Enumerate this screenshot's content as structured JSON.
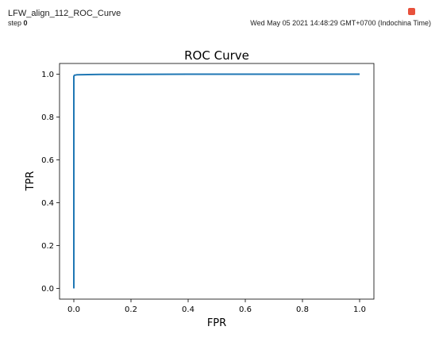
{
  "header": {
    "tag_name": "LFW_align_112_ROC_Curve",
    "step_label": "step",
    "step_value": "0",
    "timestamp": "Wed May 05 2021 14:48:29 GMT+0700 (Indochina Time)",
    "pin_icon": "pin-icon",
    "accent_color": "#e8513c"
  },
  "chart_data": {
    "type": "line",
    "title": "ROC Curve",
    "xlabel": "FPR",
    "ylabel": "TPR",
    "xlim": [
      -0.05,
      1.05
    ],
    "ylim": [
      -0.05,
      1.05
    ],
    "xticks": [
      0.0,
      0.2,
      0.4,
      0.6,
      0.8,
      1.0
    ],
    "yticks": [
      0.0,
      0.2,
      0.4,
      0.6,
      0.8,
      1.0
    ],
    "xtick_labels": [
      "0.0",
      "0.2",
      "0.4",
      "0.6",
      "0.8",
      "1.0"
    ],
    "ytick_labels": [
      "0.0",
      "0.2",
      "0.4",
      "0.6",
      "0.8",
      "1.0"
    ],
    "grid": false,
    "series": [
      {
        "color": "#1f77b4",
        "x": [
          0.0,
          0.0,
          0.002,
          0.01,
          0.05,
          0.1,
          0.2,
          0.4,
          0.6,
          0.8,
          1.0
        ],
        "y": [
          0.0,
          0.99,
          0.995,
          0.997,
          0.998,
          0.999,
          0.999,
          1.0,
          1.0,
          1.0,
          1.0
        ]
      }
    ]
  }
}
